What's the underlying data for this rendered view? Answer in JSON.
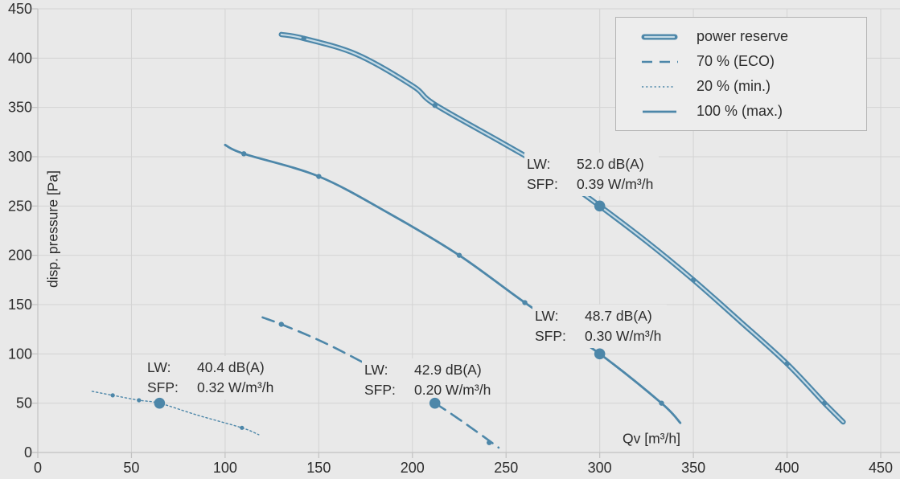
{
  "colors": {
    "curve": "#4d87a9",
    "curve_inner_light": "#c6dbe6",
    "grid": "#d3d3d3",
    "axis": "#c2c2c2",
    "text": "#2d2d2d",
    "background": "#e9e9e9",
    "legend_background": "#ededed",
    "legend_border": "#b4b4b4"
  },
  "legend": {
    "items": [
      {
        "label": "power reserve",
        "style": "double-solid"
      },
      {
        "label": "70 % (ECO)",
        "style": "dashed"
      },
      {
        "label": "20 % (min.)",
        "style": "dotted"
      },
      {
        "label": "100 % (max.)",
        "style": "solid"
      }
    ]
  },
  "annotations": [
    {
      "series": "power reserve",
      "lw_label": "LW:",
      "lw_value": "52.0 dB(A)",
      "sfp_label": "SFP:",
      "sfp_value": "0.39 W/m³/h",
      "point": [
        300,
        250
      ]
    },
    {
      "series": "100 % (max.)",
      "lw_label": "LW:",
      "lw_value": "48.7 dB(A)",
      "sfp_label": "SFP:",
      "sfp_value": "0.30 W/m³/h",
      "point": [
        300,
        100
      ]
    },
    {
      "series": "20 % (min.)",
      "lw_label": "LW:",
      "lw_value": "40.4 dB(A)",
      "sfp_label": "SFP:",
      "sfp_value": "0.32 W/m³/h",
      "point": [
        65,
        50
      ]
    },
    {
      "series": "70 % (ECO)",
      "lw_label": "LW:",
      "lw_value": "42.9 dB(A)",
      "sfp_label": "SFP:",
      "sfp_value": "0.20 W/m³/h",
      "point": [
        212,
        50
      ]
    }
  ],
  "chart_data": {
    "type": "line",
    "title": "",
    "xlabel": "Qv [m³/h]",
    "ylabel": "disp. pressure [Pa]",
    "xlim": [
      0,
      450
    ],
    "ylim": [
      0,
      450
    ],
    "xticks": [
      0,
      50,
      100,
      150,
      200,
      250,
      300,
      350,
      400,
      450
    ],
    "yticks": [
      0,
      50,
      100,
      150,
      200,
      250,
      300,
      350,
      400,
      450
    ],
    "grid": true,
    "legend_position": "top-right",
    "series": [
      {
        "name": "20 % (min.)",
        "style": "dotted",
        "points": [
          [
            29,
            62
          ],
          [
            40,
            58
          ],
          [
            54,
            53
          ],
          [
            65,
            50
          ],
          [
            85,
            38
          ],
          [
            109,
            25
          ],
          [
            118,
            18
          ]
        ],
        "markers_small": [
          [
            40,
            58
          ],
          [
            54,
            53
          ],
          [
            109,
            25
          ]
        ],
        "marker_big": [
          65,
          50
        ]
      },
      {
        "name": "70 % (ECO)",
        "style": "dashed",
        "points": [
          [
            120,
            137
          ],
          [
            130,
            130
          ],
          [
            150,
            114
          ],
          [
            170,
            95
          ],
          [
            190,
            74
          ],
          [
            212,
            50
          ],
          [
            230,
            27
          ],
          [
            246,
            5
          ]
        ],
        "markers_small": [
          [
            130,
            130
          ],
          [
            241,
            10
          ]
        ],
        "marker_big": [
          212,
          50
        ]
      },
      {
        "name": "100 % (max.)",
        "style": "solid",
        "points": [
          [
            100,
            312
          ],
          [
            110,
            303
          ],
          [
            150,
            280
          ],
          [
            188,
            242
          ],
          [
            225,
            200
          ],
          [
            260,
            152
          ],
          [
            300,
            100
          ],
          [
            333,
            50
          ],
          [
            343,
            30
          ]
        ],
        "markers_small": [
          [
            110,
            303
          ],
          [
            150,
            280
          ],
          [
            225,
            200
          ],
          [
            260,
            152
          ],
          [
            333,
            50
          ]
        ],
        "marker_big": [
          300,
          100
        ]
      },
      {
        "name": "power reserve",
        "style": "double-solid",
        "points": [
          [
            130,
            424
          ],
          [
            142,
            420
          ],
          [
            170,
            404
          ],
          [
            200,
            372
          ],
          [
            212,
            353
          ],
          [
            250,
            312
          ],
          [
            275,
            284
          ],
          [
            300,
            250
          ],
          [
            325,
            214
          ],
          [
            350,
            175
          ],
          [
            375,
            133
          ],
          [
            400,
            90
          ],
          [
            420,
            50
          ],
          [
            430,
            31
          ]
        ],
        "markers_small": [
          [
            142,
            420
          ],
          [
            212,
            352
          ],
          [
            350,
            175
          ],
          [
            400,
            90
          ],
          [
            420,
            50
          ]
        ],
        "marker_big": [
          300,
          250
        ]
      }
    ]
  }
}
